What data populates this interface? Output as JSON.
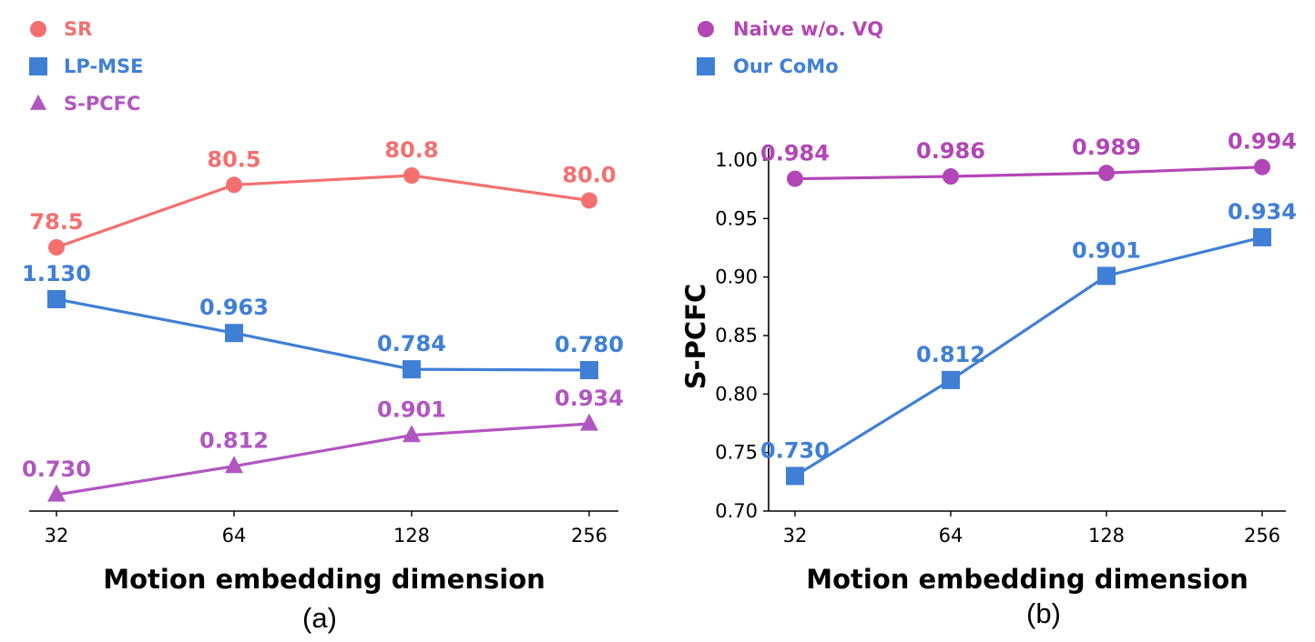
{
  "colors": {
    "sr": "#f4706f",
    "lp": "#3f7fd6",
    "spcfc": "#b156c1",
    "naive": "#b246b6",
    "ours": "#3f7fd6"
  },
  "chart_data": [
    {
      "type": "line",
      "caption": "(a)",
      "xlabel": "Motion embedding dimension",
      "ylabel": "",
      "categories": [
        "32",
        "64",
        "128",
        "256"
      ],
      "y_axis_visible": false,
      "series": [
        {
          "name": "SR",
          "marker": "circle",
          "color_key": "sr",
          "values": [
            78.5,
            80.5,
            80.8,
            80.0
          ],
          "labels": [
            "78.5",
            "80.5",
            "80.8",
            "80.0"
          ]
        },
        {
          "name": "LP-MSE",
          "marker": "square",
          "color_key": "lp",
          "values": [
            1.13,
            0.963,
            0.784,
            0.78
          ],
          "labels": [
            "1.130",
            "0.963",
            "0.784",
            "0.780"
          ]
        },
        {
          "name": "S-PCFC",
          "marker": "triangle",
          "color_key": "spcfc",
          "values": [
            0.73,
            0.812,
            0.901,
            0.934
          ],
          "labels": [
            "0.730",
            "0.812",
            "0.901",
            "0.934"
          ]
        }
      ],
      "legend_position": "top-left",
      "note": "Series are plotted on independent vertical scales (stacked bands)"
    },
    {
      "type": "line",
      "caption": "(b)",
      "xlabel": "Motion embedding dimension",
      "ylabel": "S-PCFC",
      "categories": [
        "32",
        "64",
        "128",
        "256"
      ],
      "ylim": [
        0.7,
        1.0
      ],
      "yticks": [
        "0.70",
        "0.75",
        "0.80",
        "0.85",
        "0.90",
        "0.95",
        "1.00"
      ],
      "series": [
        {
          "name": "Naive w/o. VQ",
          "marker": "circle",
          "color_key": "naive",
          "values": [
            0.984,
            0.986,
            0.989,
            0.994
          ],
          "labels": [
            "0.984",
            "0.986",
            "0.989",
            "0.994"
          ]
        },
        {
          "name": "Our CoMo",
          "marker": "square",
          "color_key": "ours",
          "values": [
            0.73,
            0.812,
            0.901,
            0.934
          ],
          "labels": [
            "0.730",
            "0.812",
            "0.901",
            "0.934"
          ]
        }
      ],
      "legend_position": "top-left"
    }
  ]
}
